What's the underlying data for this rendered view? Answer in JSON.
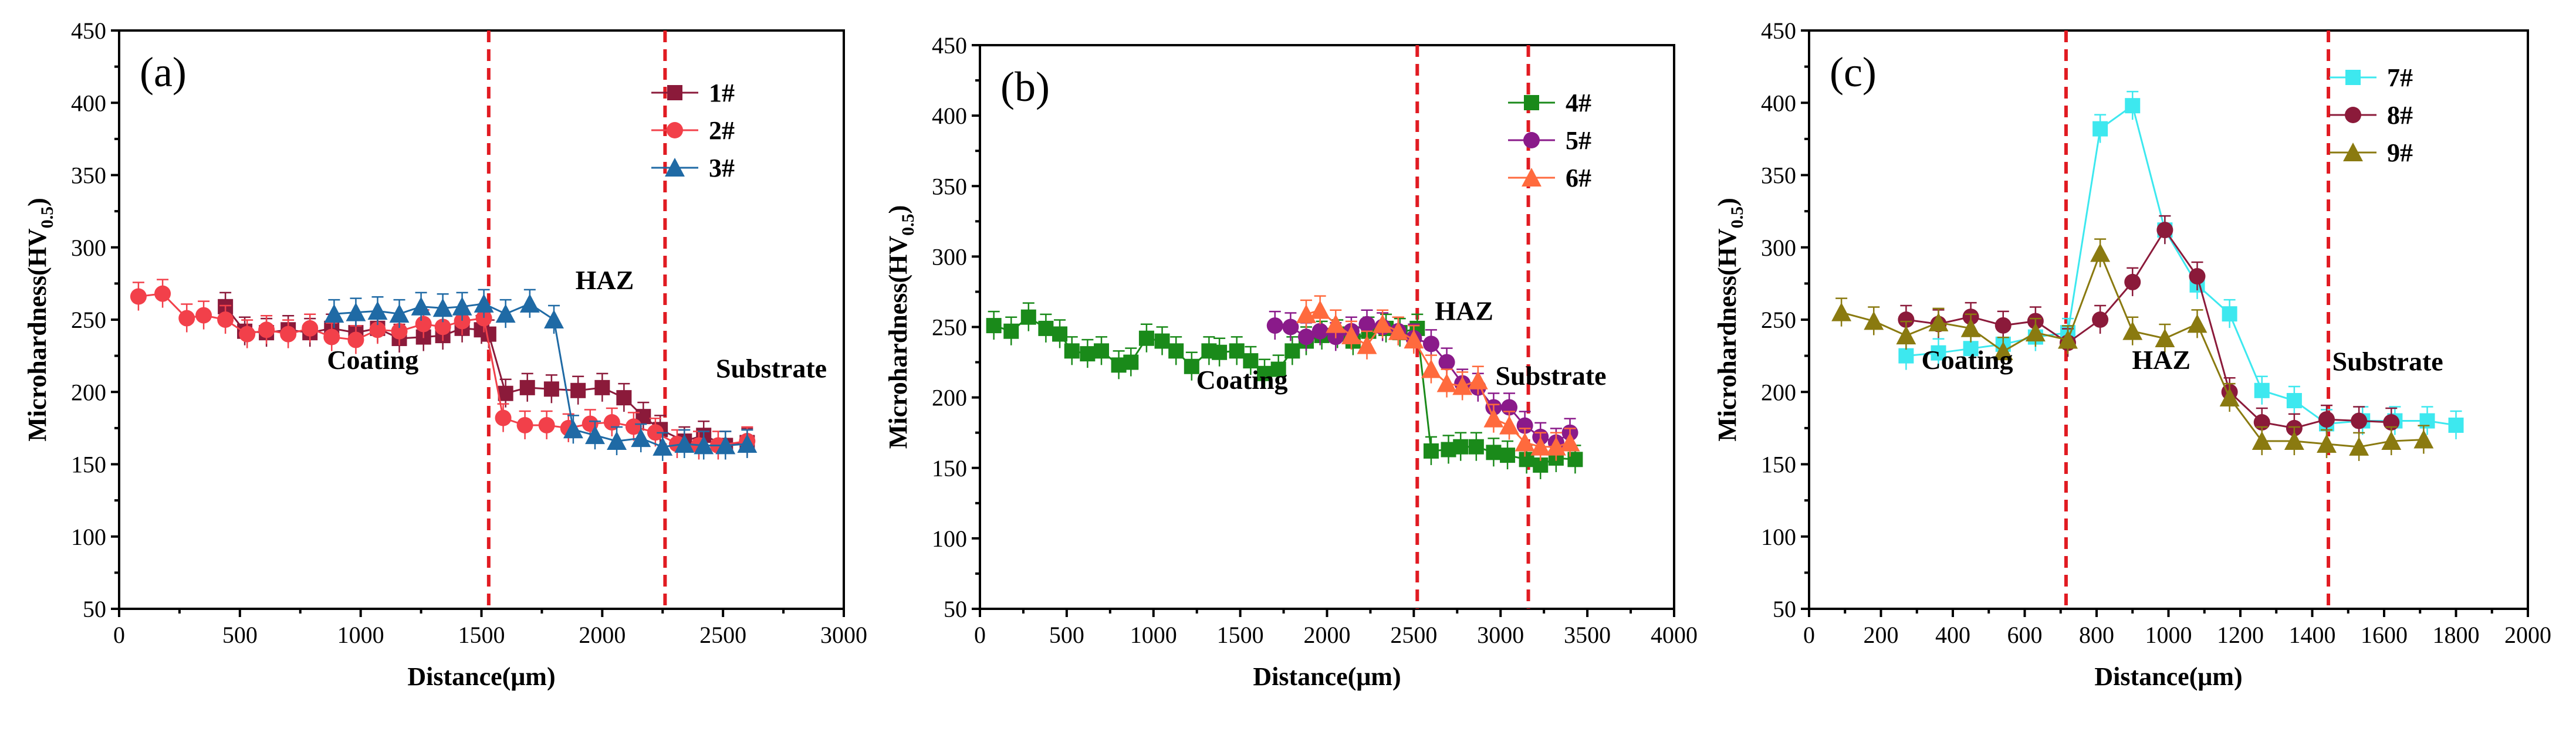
{
  "chart_data": [
    {
      "type": "line",
      "panel_label": "(a)",
      "xlabel": "Distance(μm)",
      "ylabel": "Microhardness(HV",
      "ylabel_sub": "0.5",
      "ylabel_close": ")",
      "xlim": [
        0,
        3000
      ],
      "ylim": [
        50,
        450
      ],
      "x_ticks": [
        0,
        500,
        1000,
        1500,
        2000,
        2500,
        3000
      ],
      "y_ticks": [
        50,
        100,
        150,
        200,
        250,
        300,
        350,
        400,
        450
      ],
      "legend_position": "top-right",
      "region_lines": [
        1530,
        2260
      ],
      "annotations": [
        {
          "text": "Coating",
          "x": 1050,
          "y": 216
        },
        {
          "text": "HAZ",
          "x": 2010,
          "y": 271
        },
        {
          "text": "Substrate",
          "x": 2700,
          "y": 210
        }
      ],
      "series": [
        {
          "name": "1#",
          "color": "#8b1a3a",
          "marker": "square",
          "x": [
            440,
            520,
            610,
            700,
            790,
            880,
            980,
            1070,
            1160,
            1260,
            1340,
            1420,
            1500,
            1530,
            1600,
            1690,
            1790,
            1900,
            2000,
            2090,
            2170,
            2240,
            2340,
            2420,
            2510,
            2600
          ],
          "y": [
            259,
            242,
            241,
            243,
            241,
            244,
            241,
            244,
            237,
            238,
            239,
            244,
            243,
            240,
            199,
            203,
            202,
            201,
            203,
            196,
            183,
            174,
            166,
            170,
            163,
            165
          ]
        },
        {
          "name": "2#",
          "color": "#f2404a",
          "marker": "circle",
          "x": [
            80,
            180,
            280,
            350,
            440,
            530,
            610,
            700,
            790,
            880,
            980,
            1070,
            1160,
            1260,
            1340,
            1420,
            1510,
            1590,
            1680,
            1770,
            1860,
            1950,
            2040,
            2130,
            2220,
            2310,
            2400,
            2480,
            2600
          ],
          "y": [
            266,
            268,
            251,
            253,
            250,
            240,
            243,
            240,
            244,
            238,
            236,
            243,
            242,
            247,
            245,
            249,
            251,
            182,
            177,
            177,
            175,
            178,
            179,
            176,
            172,
            164,
            163,
            163,
            166
          ]
        },
        {
          "name": "3#",
          "color": "#1f6aa5",
          "marker": "triangle",
          "x": [
            890,
            980,
            1070,
            1160,
            1250,
            1340,
            1420,
            1510,
            1600,
            1700,
            1800,
            1880,
            1970,
            2060,
            2160,
            2250,
            2340,
            2420,
            2510,
            2600
          ],
          "y": [
            254,
            255,
            256,
            254,
            259,
            258,
            259,
            261,
            254,
            261,
            250,
            174,
            170,
            166,
            168,
            162,
            164,
            163,
            163,
            164
          ]
        }
      ]
    },
    {
      "type": "line",
      "panel_label": "(b)",
      "xlabel": "Distance(μm)",
      "ylabel": "Microhardness(HV",
      "ylabel_sub": "0.5",
      "ylabel_close": ")",
      "xlim": [
        0,
        4000
      ],
      "ylim": [
        50,
        450
      ],
      "x_ticks": [
        0,
        500,
        1000,
        1500,
        2000,
        2500,
        3000,
        3500,
        4000
      ],
      "y_ticks": [
        50,
        100,
        150,
        200,
        250,
        300,
        350,
        400,
        450
      ],
      "legend_position": "top-right",
      "region_lines": [
        2520,
        3160
      ],
      "annotations": [
        {
          "text": "Coating",
          "x": 1510,
          "y": 206
        },
        {
          "text": "HAZ",
          "x": 2790,
          "y": 255
        },
        {
          "text": "Substrate",
          "x": 3290,
          "y": 209
        }
      ],
      "series": [
        {
          "name": "4#",
          "color": "#1a8a1a",
          "marker": "square",
          "x": [
            80,
            180,
            280,
            380,
            460,
            530,
            620,
            700,
            800,
            870,
            960,
            1050,
            1130,
            1220,
            1320,
            1380,
            1480,
            1560,
            1640,
            1720,
            1800,
            1880,
            1970,
            2060,
            2150,
            2240,
            2340,
            2420,
            2520,
            2600,
            2700,
            2770,
            2860,
            2960,
            3040,
            3150,
            3230,
            3320,
            3430
          ],
          "y": [
            251,
            247,
            257,
            249,
            245,
            233,
            231,
            233,
            223,
            225,
            242,
            240,
            233,
            222,
            233,
            232,
            233,
            226,
            217,
            220,
            233,
            240,
            244,
            245,
            240,
            247,
            249,
            246,
            249,
            162,
            163,
            165,
            165,
            161,
            159,
            156,
            152,
            157,
            156
          ]
        },
        {
          "name": "5#",
          "color": "#8a1a8a",
          "marker": "circle",
          "x": [
            1700,
            1790,
            1880,
            1960,
            2050,
            2140,
            2230,
            2320,
            2410,
            2500,
            2600,
            2690,
            2780,
            2870,
            2960,
            3050,
            3140,
            3230,
            3320,
            3400
          ],
          "y": [
            251,
            250,
            243,
            247,
            243,
            247,
            252,
            250,
            247,
            242,
            238,
            225,
            210,
            207,
            193,
            193,
            180,
            172,
            168,
            175
          ]
        },
        {
          "name": "6#",
          "color": "#ff6a3d",
          "marker": "triangle",
          "x": [
            1880,
            1960,
            2050,
            2140,
            2230,
            2320,
            2410,
            2500,
            2600,
            2690,
            2780,
            2870,
            2960,
            3050,
            3140,
            3230,
            3320,
            3400
          ],
          "y": [
            259,
            262,
            252,
            244,
            237,
            252,
            247,
            241,
            220,
            210,
            208,
            212,
            185,
            180,
            168,
            165,
            165,
            168
          ]
        }
      ]
    },
    {
      "type": "line",
      "panel_label": "(c)",
      "xlabel": "Distance(μm)",
      "ylabel": "Microhardness(HV",
      "ylabel_sub": "0.5",
      "ylabel_close": ")",
      "xlim": [
        0,
        2000
      ],
      "ylim": [
        50,
        450
      ],
      "x_ticks": [
        0,
        200,
        400,
        600,
        800,
        1000,
        1200,
        1400,
        1600,
        1800,
        2000
      ],
      "y_ticks": [
        50,
        100,
        150,
        200,
        250,
        300,
        350,
        400,
        450
      ],
      "legend_position": "top-right",
      "region_lines": [
        715,
        1445
      ],
      "annotations": [
        {
          "text": "Coating",
          "x": 440,
          "y": 216
        },
        {
          "text": "HAZ",
          "x": 980,
          "y": 216
        },
        {
          "text": "Substrate",
          "x": 1610,
          "y": 215
        }
      ],
      "series": [
        {
          "name": "7#",
          "color": "#3de8ef",
          "marker": "square",
          "x": [
            270,
            360,
            450,
            540,
            630,
            720,
            810,
            900,
            990,
            1080,
            1170,
            1260,
            1350,
            1440,
            1540,
            1630,
            1720,
            1800
          ],
          "y": [
            225,
            227,
            230,
            233,
            238,
            241,
            382,
            398,
            312,
            274,
            254,
            201,
            194,
            178,
            180,
            180,
            180,
            177
          ]
        },
        {
          "name": "8#",
          "color": "#8b1a3a",
          "marker": "circle",
          "x": [
            270,
            360,
            450,
            540,
            630,
            720,
            810,
            900,
            990,
            1080,
            1170,
            1260,
            1350,
            1440,
            1530,
            1620
          ],
          "y": [
            250,
            247,
            252,
            246,
            249,
            234,
            250,
            276,
            312,
            280,
            200,
            179,
            175,
            181,
            180,
            179
          ]
        },
        {
          "name": "9#",
          "color": "#8a7a10",
          "marker": "triangle",
          "x": [
            90,
            180,
            270,
            360,
            450,
            540,
            630,
            720,
            810,
            900,
            990,
            1080,
            1170,
            1260,
            1350,
            1440,
            1530,
            1620,
            1710
          ],
          "y": [
            255,
            249,
            239,
            248,
            244,
            228,
            241,
            236,
            296,
            242,
            237,
            247,
            196,
            166,
            166,
            164,
            162,
            166,
            167
          ]
        }
      ]
    }
  ]
}
